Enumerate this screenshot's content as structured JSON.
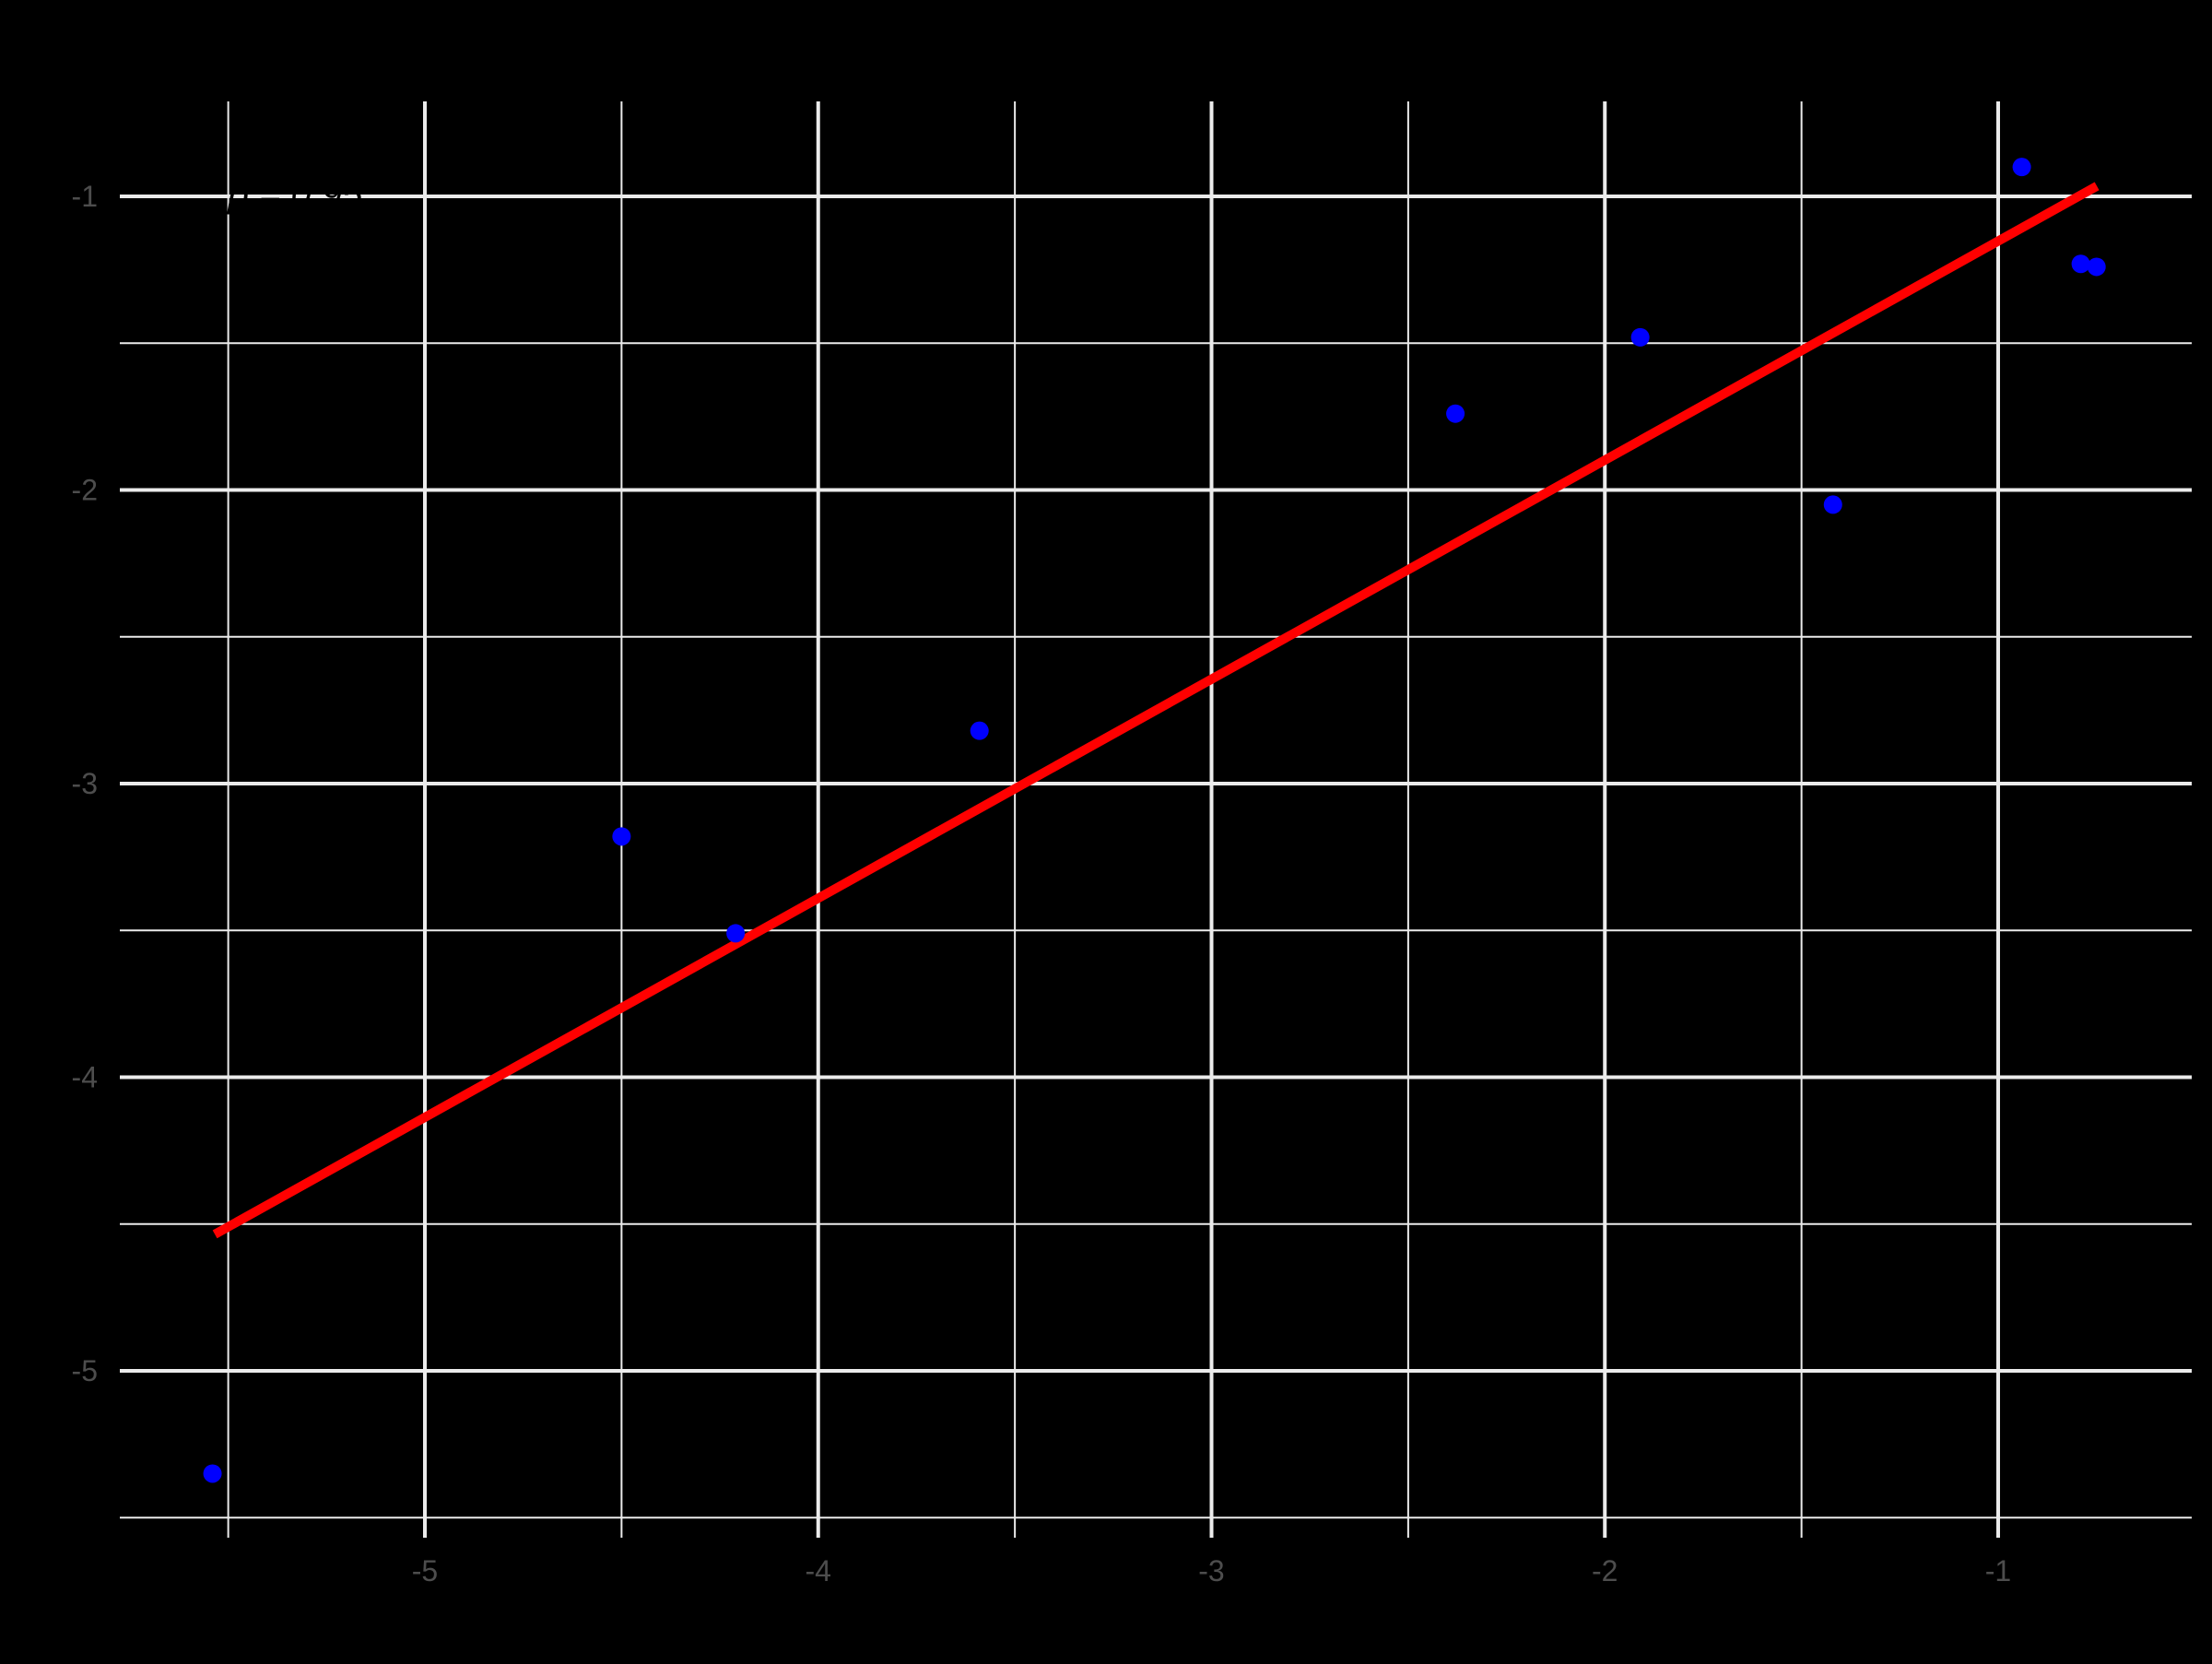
{
  "chart_data": {
    "type": "scatter",
    "title": "",
    "xlabel": "",
    "ylabel": "",
    "xlim": [
      -5.78,
      -0.52
    ],
    "ylim": [
      -5.5,
      -0.7
    ],
    "grid": true,
    "legend": null,
    "x_ticks": [
      -5,
      -4,
      -3,
      -2,
      -1
    ],
    "x_tick_labels": [
      "-5",
      "-4",
      "-3",
      "-2",
      "-1"
    ],
    "x_minor_ticks": [
      -5.5,
      -4.5,
      -3.5,
      -2.5,
      -1.5
    ],
    "y_ticks": [
      -5,
      -4,
      -3,
      -2,
      -1
    ],
    "y_tick_labels": [
      "-5",
      "-4",
      "-3",
      "-2",
      "-1"
    ],
    "y_minor_ticks": [
      -5.5,
      -4.5,
      -3.5,
      -2.5,
      -1.5
    ],
    "series": [
      {
        "name": "points",
        "kind": "scatter",
        "color": "#0000ff",
        "x": [
          -5.54,
          -4.5,
          -4.21,
          -3.59,
          -2.38,
          -1.91,
          -1.42,
          -0.94,
          -0.79,
          -0.75
        ],
        "y": [
          -5.35,
          -3.18,
          -3.51,
          -2.82,
          -1.74,
          -1.48,
          -2.05,
          -0.9,
          -1.23,
          -1.24
        ]
      },
      {
        "name": "fit line",
        "kind": "line",
        "color": "#ff0000",
        "x": [
          -5.534,
          -0.749
        ],
        "y": [
          -4.535,
          -0.965
        ]
      }
    ],
    "annotations": [
      {
        "text": "ρ = 0.95",
        "x": -5.5,
        "y": -1.0,
        "color": "#000000"
      }
    ]
  },
  "style": {
    "background": "#000000",
    "grid_color": "#ebebeb",
    "tick_label_color": "#4d4d4d",
    "point_color": "#0000ff",
    "line_color": "#ff0000",
    "annotation_color": "#000000"
  }
}
